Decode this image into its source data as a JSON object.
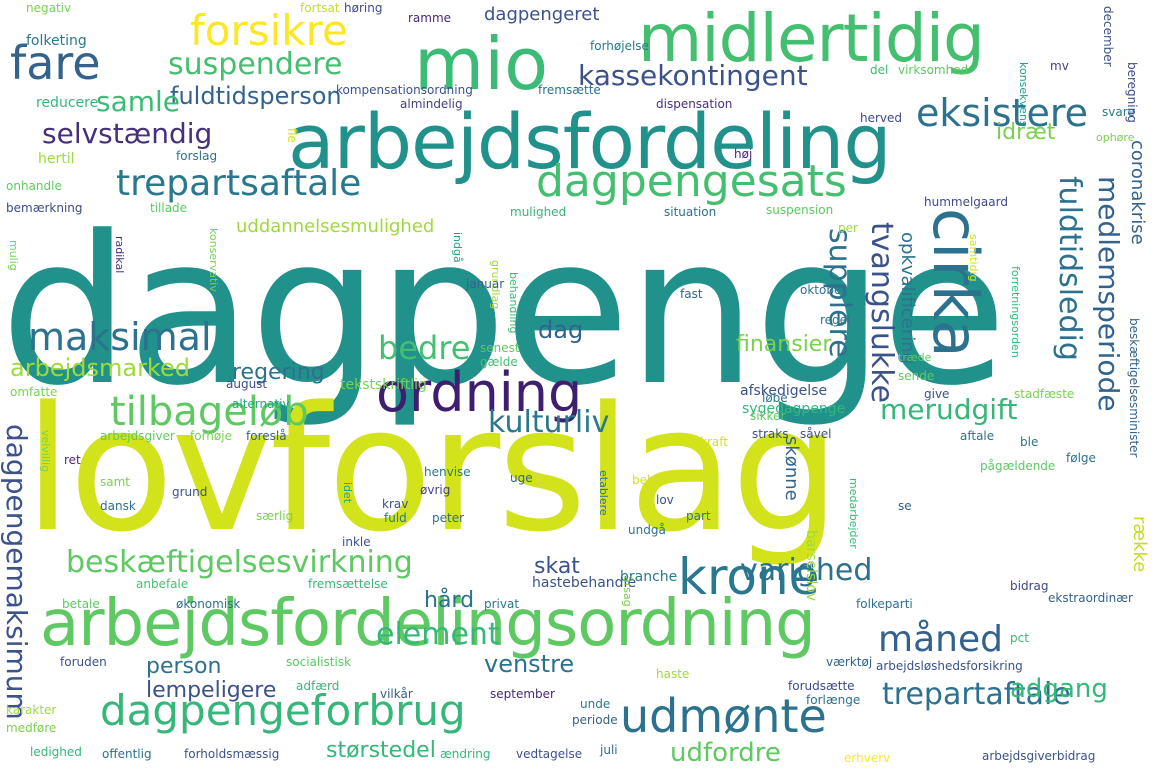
{
  "words": [
    {
      "text": "dagpenge",
      "color": "#21918c"
    },
    {
      "text": "lovforslag",
      "color": "#d2e21b"
    },
    {
      "text": "arbejdsfordeling",
      "color": "#21918c"
    },
    {
      "text": "arbejdsfordelingsordning",
      "color": "#5ec962"
    },
    {
      "text": "midlertidig",
      "color": "#44bf70"
    },
    {
      "text": "mio",
      "color": "#3bbb75"
    },
    {
      "text": "cirka",
      "color": "#2c728e"
    },
    {
      "text": "ordning",
      "color": "#3e1e6e"
    },
    {
      "text": "krone",
      "color": "#2a788e"
    },
    {
      "text": "dagpengeforbrug",
      "color": "#35b779"
    },
    {
      "text": "udmønte",
      "color": "#2c728e"
    },
    {
      "text": "dagpengesats",
      "color": "#44bf70"
    },
    {
      "text": "eksistere",
      "color": "#2c728e"
    },
    {
      "text": "fare",
      "color": "#33638d"
    },
    {
      "text": "forsikre",
      "color": "#fde725"
    },
    {
      "text": "trepartsaftale",
      "color": "#2a788e"
    },
    {
      "text": "tilbageløb",
      "color": "#5ec962"
    },
    {
      "text": "maksimal",
      "color": "#2c728e"
    },
    {
      "text": "bedre",
      "color": "#44bf70"
    },
    {
      "text": "beskæftigelsesvirkning",
      "color": "#5ec962"
    },
    {
      "text": "element",
      "color": "#35b779"
    },
    {
      "text": "måned",
      "color": "#33638d"
    },
    {
      "text": "trepartaftale",
      "color": "#2c728e"
    },
    {
      "text": "kassekontingent",
      "color": "#3b528b"
    },
    {
      "text": "suspendere",
      "color": "#44bf70"
    },
    {
      "text": "selvstændig",
      "color": "#46307e"
    },
    {
      "text": "fuldtidsperson",
      "color": "#33638d"
    },
    {
      "text": "samle",
      "color": "#3bbb75"
    },
    {
      "text": "kulturliv",
      "color": "#2a788e"
    },
    {
      "text": "merudgift",
      "color": "#35b779"
    },
    {
      "text": "varighed",
      "color": "#2c728e"
    },
    {
      "text": "adgang",
      "color": "#35b779"
    },
    {
      "text": "udfordre",
      "color": "#5ec962"
    },
    {
      "text": "dagpengemaksimum",
      "color": "#3b528b"
    },
    {
      "text": "tvangslukke",
      "color": "#3b528b"
    },
    {
      "text": "fuldtidsledig",
      "color": "#2c728e"
    },
    {
      "text": "medlemsperiode",
      "color": "#33638d"
    },
    {
      "text": "supplere",
      "color": "#2c728e"
    },
    {
      "text": "uddannelsesmulighed",
      "color": "#a0da39"
    },
    {
      "text": "arbejdsmarked",
      "color": "#a0da39"
    },
    {
      "text": "regering",
      "color": "#2c728e"
    },
    {
      "text": "finansier",
      "color": "#7ad151"
    },
    {
      "text": "dag",
      "color": "#33638d"
    },
    {
      "text": "venstre",
      "color": "#2c728e"
    },
    {
      "text": "lempeligere",
      "color": "#3b528b"
    },
    {
      "text": "person",
      "color": "#2c728e"
    },
    {
      "text": "størstedel",
      "color": "#35b779"
    },
    {
      "text": "skat",
      "color": "#3b528b"
    },
    {
      "text": "hård",
      "color": "#2c728e"
    },
    {
      "text": "idræt",
      "color": "#7ad151"
    },
    {
      "text": "dagpengeret",
      "color": "#3b528b"
    },
    {
      "text": "coronakrise",
      "color": "#33638d"
    },
    {
      "text": "opkvalificering",
      "color": "#2c728e"
    },
    {
      "text": "række",
      "color": "#c0df25"
    },
    {
      "text": "skønne",
      "color": "#33638d"
    },
    {
      "text": "tekstskriftlig",
      "color": "#7ad151"
    },
    {
      "text": "barselslov",
      "color": "#a0da39"
    },
    {
      "text": "hastebehandle",
      "color": "#3b528b"
    },
    {
      "text": "afskedigelse",
      "color": "#3b528b"
    },
    {
      "text": "sygedagpenge",
      "color": "#35b779"
    },
    {
      "text": "branche",
      "color": "#2a788e"
    },
    {
      "text": "negativ",
      "color": "#7ad151"
    },
    {
      "text": "fortsat",
      "color": "#c0df25"
    },
    {
      "text": "høring",
      "color": "#3e4a89"
    },
    {
      "text": "ramme",
      "color": "#482878"
    },
    {
      "text": "december",
      "color": "#3b528b"
    },
    {
      "text": "folketing",
      "color": "#2a788e"
    },
    {
      "text": "forhøjelse",
      "color": "#2a788e"
    },
    {
      "text": "del",
      "color": "#3bbb75"
    },
    {
      "text": "mv",
      "color": "#433e85"
    },
    {
      "text": "beregning",
      "color": "#3e4a89"
    },
    {
      "text": "reducere",
      "color": "#35b779"
    },
    {
      "text": "kompensationsordning",
      "color": "#3b528b"
    },
    {
      "text": "fremsætte",
      "color": "#2c728e"
    },
    {
      "text": "virksomhed",
      "color": "#5ec962"
    },
    {
      "text": "almindelig",
      "color": "#433e85"
    },
    {
      "text": "dispensation",
      "color": "#46307e"
    },
    {
      "text": "herved",
      "color": "#3e4a89"
    },
    {
      "text": "konsekvens",
      "color": "#1fa088"
    },
    {
      "text": "svare",
      "color": "#2a788e"
    },
    {
      "text": "ophøre",
      "color": "#7ad151"
    },
    {
      "text": "hertil",
      "color": "#a0da39"
    },
    {
      "text": "forslag",
      "color": "#2c728e"
    },
    {
      "text": "fle",
      "color": "#d2e21b"
    },
    {
      "text": "høj",
      "color": "#482878"
    },
    {
      "text": "onhandle",
      "color": "#5ec962"
    },
    {
      "text": "bemærkning",
      "color": "#3e4a89"
    },
    {
      "text": "tillade",
      "color": "#5ec962"
    },
    {
      "text": "mulighed",
      "color": "#35b779"
    },
    {
      "text": "situation",
      "color": "#2c728e"
    },
    {
      "text": "suspension",
      "color": "#5ec962"
    },
    {
      "text": "hummelgaard",
      "color": "#3e4a89"
    },
    {
      "text": "per",
      "color": "#a0da39"
    },
    {
      "text": "konservativ",
      "color": "#7ad151"
    },
    {
      "text": "radikal",
      "color": "#46307e"
    },
    {
      "text": "mulig",
      "color": "#7ad151"
    },
    {
      "text": "indgå",
      "color": "#22a884"
    },
    {
      "text": "grundlag",
      "color": "#a0da39"
    },
    {
      "text": "samtidig",
      "color": "#d2e21b"
    },
    {
      "text": "januar",
      "color": "#33638d"
    },
    {
      "text": "fast",
      "color": "#33638d"
    },
    {
      "text": "oktober",
      "color": "#2c728e"
    },
    {
      "text": "forretningsorden",
      "color": "#35b779"
    },
    {
      "text": "regel",
      "color": "#2a788e"
    },
    {
      "text": "beskæftigelsesminister",
      "color": "#33638d"
    },
    {
      "text": "behandling",
      "color": "#3bbb75"
    },
    {
      "text": "senest",
      "color": "#5ec962"
    },
    {
      "text": "gælde",
      "color": "#44bf70"
    },
    {
      "text": "træde",
      "color": "#5ec962"
    },
    {
      "text": "alternativ",
      "color": "#22a884"
    },
    {
      "text": "sende",
      "color": "#5ec962"
    },
    {
      "text": "august",
      "color": "#3e4a89"
    },
    {
      "text": "give",
      "color": "#3b528b"
    },
    {
      "text": "stadfæste",
      "color": "#7ad151"
    },
    {
      "text": "omfatte",
      "color": "#7ad151"
    },
    {
      "text": "løbe",
      "color": "#2a788e"
    },
    {
      "text": "sikker",
      "color": "#5ec962"
    },
    {
      "text": "arbejdsgiver",
      "color": "#5ec962"
    },
    {
      "text": "forhøje",
      "color": "#7ad151"
    },
    {
      "text": "foreslå",
      "color": "#33638d"
    },
    {
      "text": "kraft",
      "color": "#d2e21b"
    },
    {
      "text": "straks",
      "color": "#3b528b"
    },
    {
      "text": "såvel",
      "color": "#3b528b"
    },
    {
      "text": "aftale",
      "color": "#2c728e"
    },
    {
      "text": "ble",
      "color": "#2c728e"
    },
    {
      "text": "følge",
      "color": "#2c728e"
    },
    {
      "text": "ret",
      "color": "#482878"
    },
    {
      "text": "henvise",
      "color": "#2a788e"
    },
    {
      "text": "grund",
      "color": "#3b528b"
    },
    {
      "text": "øvrig",
      "color": "#433e85"
    },
    {
      "text": "uge",
      "color": "#33638d"
    },
    {
      "text": "behov",
      "color": "#d2e21b"
    },
    {
      "text": "pågældende",
      "color": "#5ec962"
    },
    {
      "text": "samt",
      "color": "#7ad151"
    },
    {
      "text": "velvillig",
      "color": "#7ad151"
    },
    {
      "text": "krav",
      "color": "#3b528b"
    },
    {
      "text": "fuld",
      "color": "#2a788e"
    },
    {
      "text": "dansk",
      "color": "#2c728e"
    },
    {
      "text": "idet",
      "color": "#22a884"
    },
    {
      "text": "peter",
      "color": "#2c728e"
    },
    {
      "text": "lov",
      "color": "#3b528b"
    },
    {
      "text": "part",
      "color": "#2a788e"
    },
    {
      "text": "etablere",
      "color": "#2c728e"
    },
    {
      "text": "medarbejder",
      "color": "#3bbb75"
    },
    {
      "text": "se",
      "color": "#33638d"
    },
    {
      "text": "særlig",
      "color": "#7ad151"
    },
    {
      "text": "inkle",
      "color": "#3b528b"
    },
    {
      "text": "undgå",
      "color": "#2c728e"
    },
    {
      "text": "anbefale",
      "color": "#44bf70"
    },
    {
      "text": "fremsættelse",
      "color": "#35b779"
    },
    {
      "text": "årsag",
      "color": "#7ad151"
    },
    {
      "text": "bidrag",
      "color": "#3e4a89"
    },
    {
      "text": "ekstraordinær",
      "color": "#33638d"
    },
    {
      "text": "betale",
      "color": "#5ec962"
    },
    {
      "text": "økonomisk",
      "color": "#2c728e"
    },
    {
      "text": "privat",
      "color": "#2a788e"
    },
    {
      "text": "folkeparti",
      "color": "#2c728e"
    },
    {
      "text": "pct",
      "color": "#3bbb75"
    },
    {
      "text": "foruden",
      "color": "#3b528b"
    },
    {
      "text": "socialistisk",
      "color": "#5ec962"
    },
    {
      "text": "haste",
      "color": "#a0da39"
    },
    {
      "text": "værktøj",
      "color": "#33638d"
    },
    {
      "text": "arbejdsløshedsforsikring",
      "color": "#3b528b"
    },
    {
      "text": "adfærd",
      "color": "#35b779"
    },
    {
      "text": "vilkår",
      "color": "#33638d"
    },
    {
      "text": "september",
      "color": "#482878"
    },
    {
      "text": "forudsætte",
      "color": "#3e4a89"
    },
    {
      "text": "forlænge",
      "color": "#2c728e"
    },
    {
      "text": "unde",
      "color": "#2a788e"
    },
    {
      "text": "karakter",
      "color": "#a0da39"
    },
    {
      "text": "medføre",
      "color": "#7ad151"
    },
    {
      "text": "periode",
      "color": "#33638d"
    },
    {
      "text": "ledighed",
      "color": "#35b779"
    },
    {
      "text": "offentlig",
      "color": "#2c728e"
    },
    {
      "text": "forholdsmæssig",
      "color": "#3b528b"
    },
    {
      "text": "ændring",
      "color": "#35b779"
    },
    {
      "text": "vedtagelse",
      "color": "#3b528b"
    },
    {
      "text": "juli",
      "color": "#2c728e"
    },
    {
      "text": "erhverv",
      "color": "#fde725"
    },
    {
      "text": "arbejdsgiverbidrag",
      "color": "#3b528b"
    }
  ]
}
